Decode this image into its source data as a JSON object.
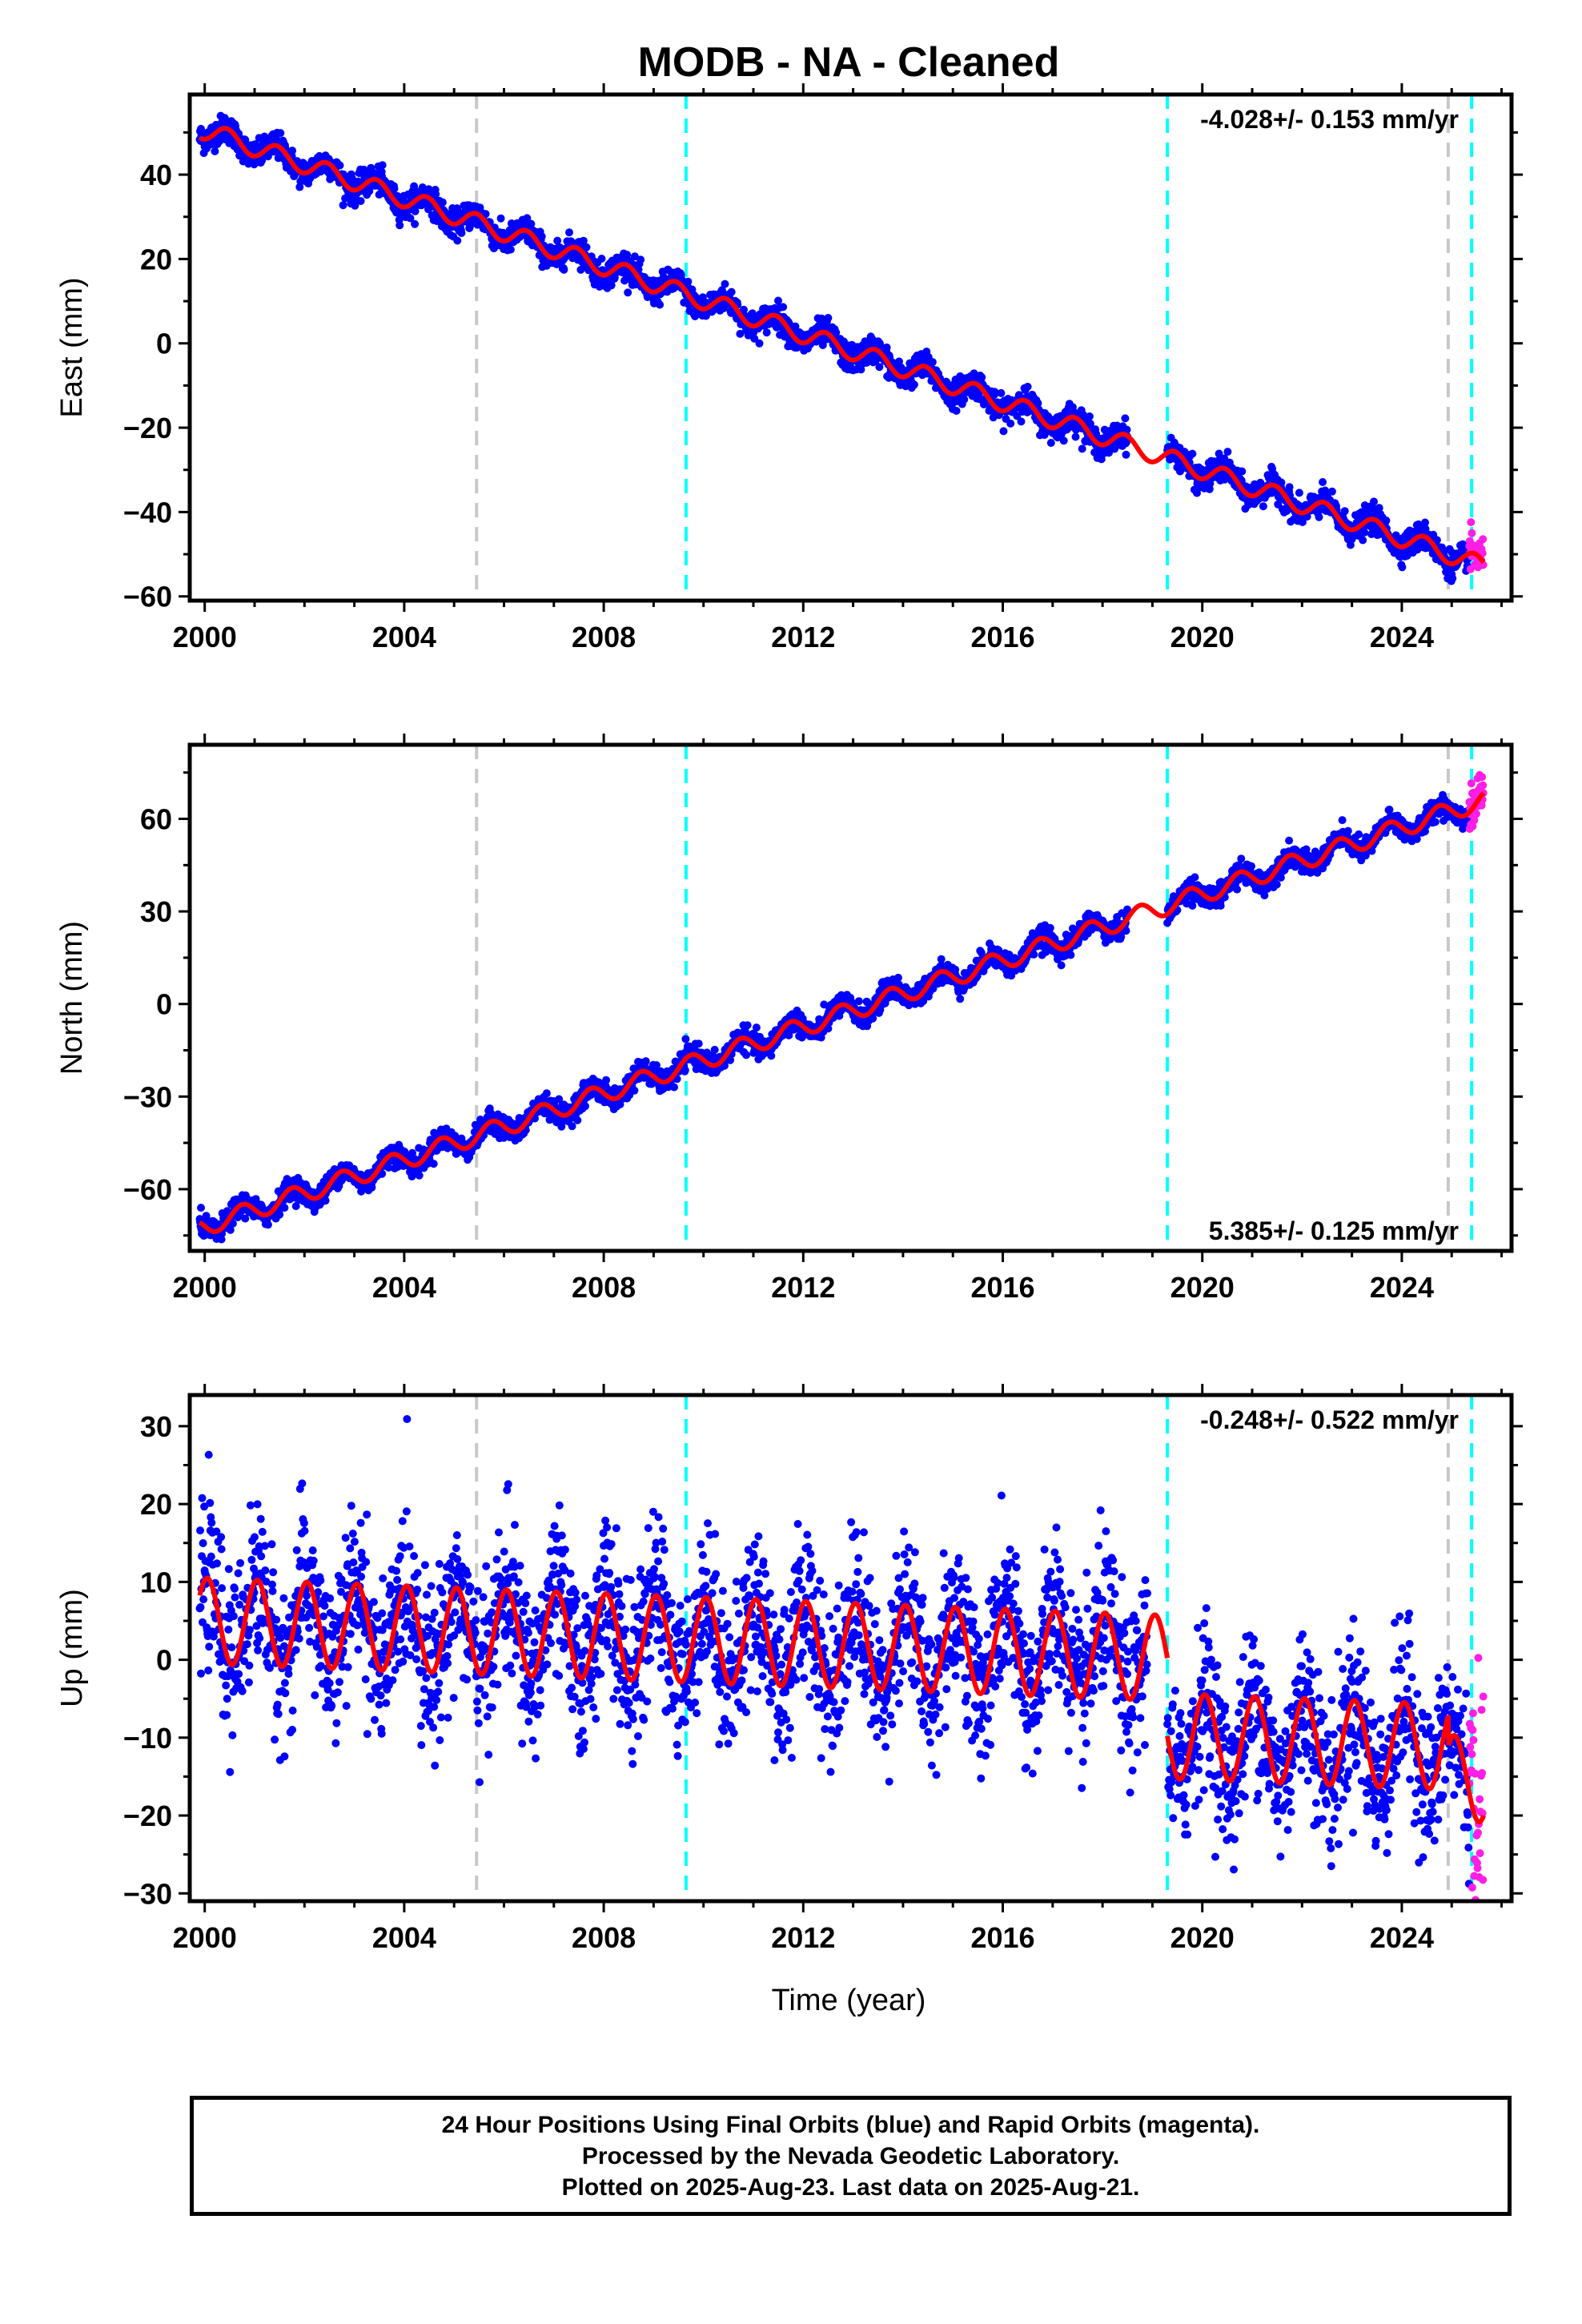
{
  "title": "MODB  - NA - Cleaned",
  "xlabel": "Time (year)",
  "footer": {
    "lines": [
      "24 Hour Positions Using Final Orbits (blue) and Rapid Orbits (magenta).",
      "Processed by the Nevada Geodetic Laboratory.",
      "Plotted on 2025-Aug-23. Last data on 2025-Aug-21."
    ]
  },
  "colors": {
    "final_orbits": "#0000ff",
    "rapid_orbits": "#ff1ee6",
    "model": "#ff0000",
    "equipment_change": "#00ffff",
    "earthquake": "#c8c8c8"
  },
  "chart_data": [
    {
      "type": "scatter",
      "ylabel": "East (mm)",
      "rate_label": "-4.028+/- 0.153 mm/yr",
      "rate_position": "top-right",
      "xlim": [
        1999.7,
        2026.2
      ],
      "ylim": [
        -61,
        59
      ],
      "xticks": [
        2000,
        2004,
        2008,
        2012,
        2016,
        2020,
        2024
      ],
      "yticks": [
        -60,
        -40,
        -20,
        0,
        20,
        40
      ],
      "data_start": 1999.9,
      "data_end": 2025.64,
      "rapid_start": 2025.35,
      "trend": {
        "y_at_2000": 50.5,
        "rate": -4.028
      },
      "seasonal": {
        "amplitude": 2.2,
        "phase": 0.8
      },
      "segment_offsets": [
        0,
        0,
        0,
        0,
        0
      ],
      "noise": 1.6,
      "gap": [
        2018.5,
        2019.3
      ],
      "model_segments": [
        [
          1999.9,
          2019.3
        ],
        [
          2019.3,
          2025.64
        ]
      ],
      "vlines_gray": [
        2005.45,
        2024.93
      ],
      "vlines_cyan": [
        2009.65,
        2019.3,
        2025.4
      ]
    },
    {
      "type": "scatter",
      "ylabel": "North (mm)",
      "rate_label": "5.385+/- 0.125 mm/yr",
      "rate_position": "bottom-right",
      "xlim": [
        1999.7,
        2026.2
      ],
      "ylim": [
        -80,
        84
      ],
      "xticks": [
        2000,
        2004,
        2008,
        2012,
        2016,
        2020,
        2024
      ],
      "yticks": [
        -60,
        -30,
        0,
        30,
        60
      ],
      "data_start": 1999.9,
      "data_end": 2025.64,
      "rapid_start": 2025.35,
      "trend": {
        "y_at_2000": -72,
        "rate": 5.385
      },
      "seasonal": {
        "amplitude": 3.0,
        "phase": 0.5
      },
      "segment_offsets": [
        0,
        0,
        0,
        0,
        0
      ],
      "noise": 1.8,
      "gap": [
        2018.5,
        2019.3
      ],
      "model_segments": [
        [
          1999.9,
          2019.3
        ],
        [
          2019.3,
          2025.64
        ]
      ],
      "vlines_gray": [
        2005.45,
        2024.93
      ],
      "vlines_cyan": [
        2009.65,
        2019.3,
        2025.4
      ]
    },
    {
      "type": "scatter",
      "ylabel": "Up (mm)",
      "rate_label": "-0.248+/- 0.522 mm/yr",
      "rate_position": "top-right",
      "xlim": [
        1999.7,
        2026.2
      ],
      "ylim": [
        -31,
        34
      ],
      "xticks": [
        2000,
        2004,
        2008,
        2012,
        2016,
        2020,
        2024
      ],
      "yticks": [
        -30,
        -20,
        -10,
        0,
        10,
        20,
        30
      ],
      "data_start": 1999.9,
      "data_end": 2025.64,
      "rapid_start": 2025.35,
      "trend": {
        "y_at_2000": 5,
        "rate": -0.248
      },
      "seasonal": {
        "amplitude": 5.5,
        "phase": 0.2
      },
      "segment_offsets": [
        0,
        0,
        0,
        -10,
        -14
      ],
      "noise": 5.0,
      "gap": [
        2018.9,
        2019.3
      ],
      "model_segments": [
        [
          1999.9,
          2019.3
        ],
        [
          2019.3,
          2025.64
        ]
      ],
      "vlines_gray": [
        2005.45,
        2024.93
      ],
      "vlines_cyan": [
        2009.65,
        2019.3,
        2025.4
      ]
    }
  ]
}
